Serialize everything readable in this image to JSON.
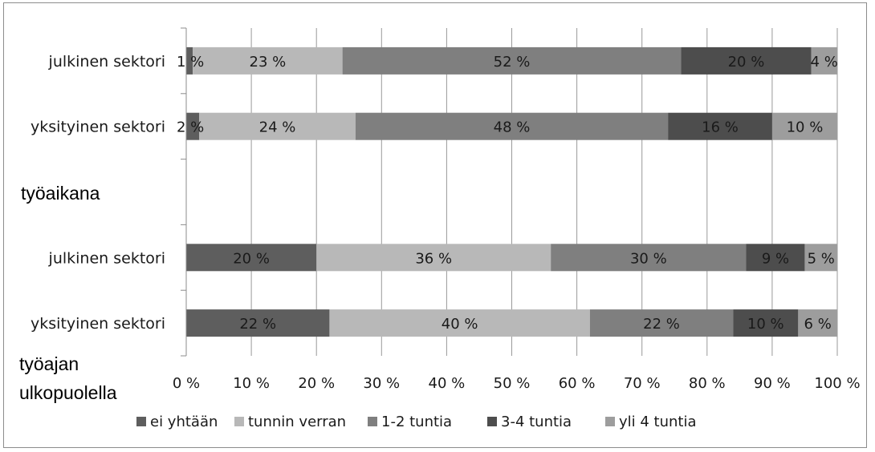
{
  "chart_data": {
    "type": "bar",
    "orientation": "horizontal",
    "stacked": "percent",
    "categories": [
      "julkinen sektori",
      "yksityinen sektori",
      "",
      "julkinen sektori",
      "yksityinen sektori"
    ],
    "series": [
      {
        "name": "ei yhtään",
        "color": "#5e5e5e",
        "values": [
          1,
          2,
          null,
          20,
          22
        ],
        "labels": [
          "1 %",
          "2 %",
          "",
          "20 %",
          "22 %"
        ]
      },
      {
        "name": "tunnin verran",
        "color": "#b8b8b8",
        "values": [
          23,
          24,
          null,
          36,
          40
        ],
        "labels": [
          "23 %",
          "24 %",
          "",
          "36 %",
          "40 %"
        ]
      },
      {
        "name": "1-2 tuntia",
        "color": "#7f7f7f",
        "values": [
          52,
          48,
          null,
          30,
          22
        ],
        "labels": [
          "52 %",
          "48 %",
          "",
          "30 %",
          "22 %"
        ]
      },
      {
        "name": "3-4 tuntia",
        "color": "#4d4d4d",
        "values": [
          20,
          16,
          null,
          9,
          10
        ],
        "labels": [
          "20 %",
          "16 %",
          "",
          "9 %",
          "10 %"
        ]
      },
      {
        "name": "yli 4 tuntia",
        "color": "#9d9d9d",
        "values": [
          4,
          10,
          null,
          5,
          6
        ],
        "labels": [
          "4 %",
          "10 %",
          "",
          "5 %",
          "6 %"
        ]
      }
    ],
    "xlim": [
      0,
      100
    ],
    "x_ticks": [
      "0 %",
      "10 %",
      "20 %",
      "30 %",
      "40 %",
      "50 %",
      "60 %",
      "70 %",
      "80 %",
      "90 %",
      "100 %"
    ],
    "grid": "vertical",
    "legend": "bottom",
    "group_labels": [
      "työaikana",
      "työajan ulkopuolella"
    ]
  },
  "overlay": {
    "group_top": "työaikana",
    "group_bottom_line1": "työajan",
    "group_bottom_line2": "ulkopuolella"
  }
}
